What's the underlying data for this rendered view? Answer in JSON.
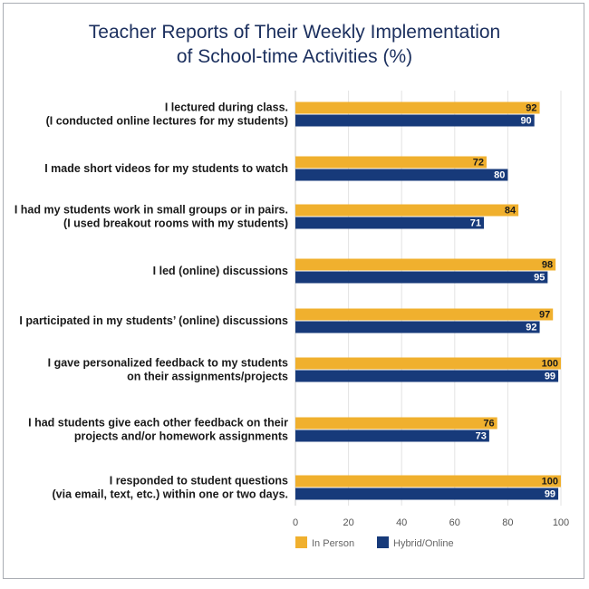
{
  "chart_data": {
    "type": "bar",
    "orientation": "horizontal",
    "title_line1": "Teacher Reports of Their Weekly Implementation",
    "title_line2": "of School-time Activities (%)",
    "categories": [
      [
        "I lectured during class.",
        "(I conducted online lectures for my students)"
      ],
      [
        "I made short videos for my students to watch"
      ],
      [
        "I had my students work in small groups or in pairs.",
        "(I used breakout rooms with my students)"
      ],
      [
        "I led (online) discussions"
      ],
      [
        "I participated in my students’ (online) discussions"
      ],
      [
        "I gave personalized feedback to my students",
        "on their assignments/projects"
      ],
      [
        "I had students give each other feedback on their",
        "projects and/or homework assignments"
      ],
      [
        "I responded to student questions",
        "(via email, text, etc.) within one or two days."
      ]
    ],
    "series": [
      {
        "name": "In Person",
        "color": "#f0b02e",
        "label_color": "#1a1a1a",
        "values": [
          92,
          72,
          84,
          98,
          97,
          100,
          76,
          100
        ]
      },
      {
        "name": "Hybrid/Online",
        "color": "#173a7a",
        "label_color": "#ffffff",
        "values": [
          90,
          80,
          71,
          95,
          92,
          99,
          73,
          99
        ]
      }
    ],
    "xlim": [
      0,
      100
    ],
    "xticks": [
      0,
      20,
      40,
      60,
      80,
      100
    ],
    "grid": true,
    "legend_position": "bottom"
  }
}
